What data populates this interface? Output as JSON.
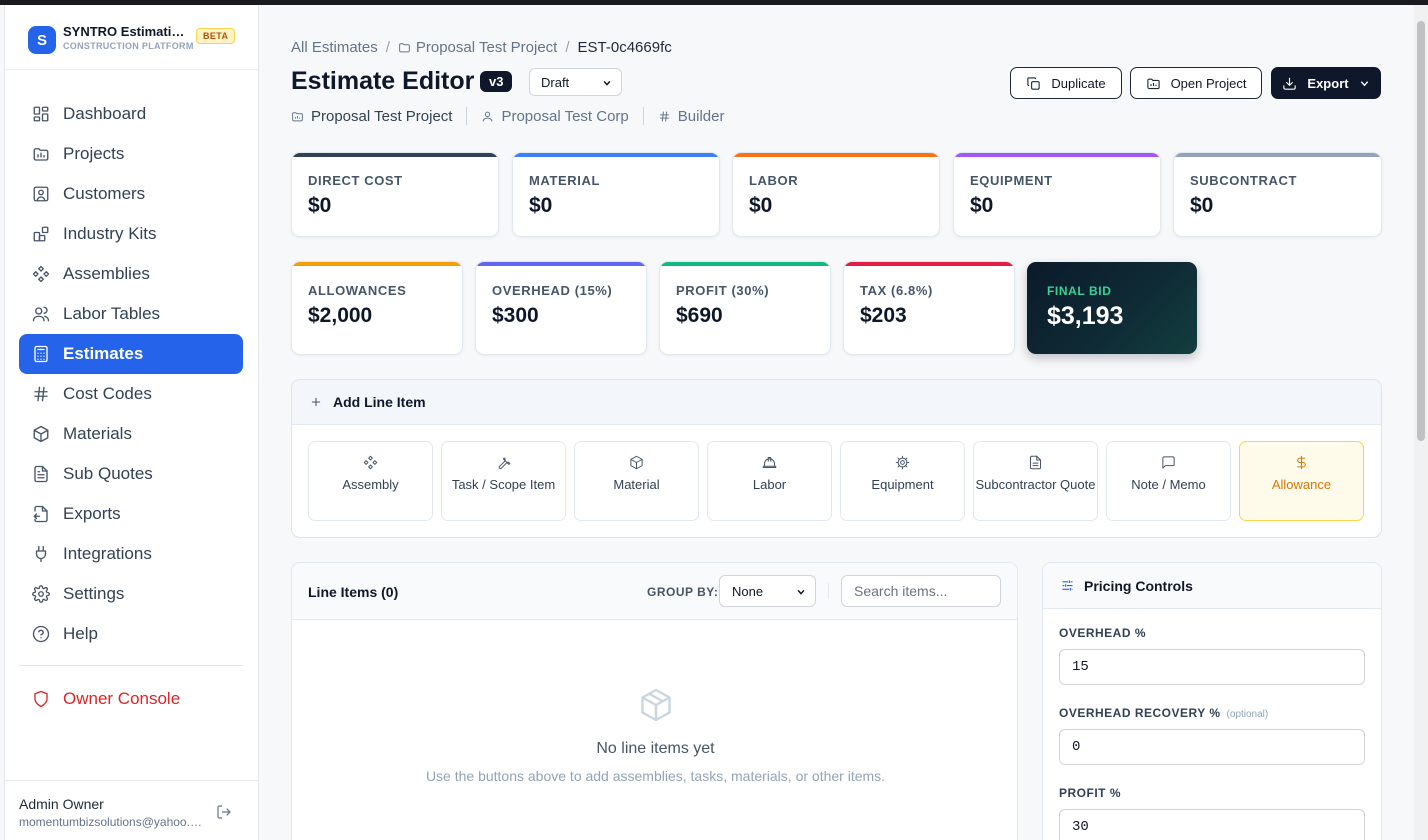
{
  "brand": {
    "logo_letter": "S",
    "name": "SYNTRO Estimating",
    "subtitle": "CONSTRUCTION PLATFORM",
    "badge": "BETA"
  },
  "sidebar": {
    "items": [
      {
        "label": "Dashboard",
        "icon": "dashboard-icon"
      },
      {
        "label": "Projects",
        "icon": "folder-chart-icon"
      },
      {
        "label": "Customers",
        "icon": "contact-icon"
      },
      {
        "label": "Industry Kits",
        "icon": "blocks-icon"
      },
      {
        "label": "Assemblies",
        "icon": "components-icon"
      },
      {
        "label": "Labor Tables",
        "icon": "users-icon"
      },
      {
        "label": "Estimates",
        "icon": "calculator-icon",
        "active": true
      },
      {
        "label": "Cost Codes",
        "icon": "hash-icon"
      },
      {
        "label": "Materials",
        "icon": "package-icon"
      },
      {
        "label": "Sub Quotes",
        "icon": "file-text-icon"
      },
      {
        "label": "Exports",
        "icon": "file-export-icon"
      },
      {
        "label": "Integrations",
        "icon": "plug-icon"
      },
      {
        "label": "Settings",
        "icon": "gear-icon"
      },
      {
        "label": "Help",
        "icon": "help-circle-icon"
      }
    ],
    "owner_console": "Owner Console"
  },
  "user": {
    "name": "Admin Owner",
    "email": "momentumbizsolutions@yahoo.com"
  },
  "breadcrumb": {
    "root": "All Estimates",
    "project": "Proposal Test Project",
    "current": "EST-0c4669fc"
  },
  "header": {
    "title": "Estimate Editor",
    "version": "v3",
    "status": "Draft",
    "project": "Proposal Test Project",
    "customer": "Proposal Test Corp",
    "role": "Builder",
    "buttons": {
      "duplicate": "Duplicate",
      "open_project": "Open Project",
      "export": "Export"
    }
  },
  "stats_row1": [
    {
      "label": "DIRECT COST",
      "value": "$0",
      "color": "#334155"
    },
    {
      "label": "MATERIAL",
      "value": "$0",
      "color": "#3b82f6"
    },
    {
      "label": "LABOR",
      "value": "$0",
      "color": "#f97316"
    },
    {
      "label": "EQUIPMENT",
      "value": "$0",
      "color": "#a855f7"
    },
    {
      "label": "SUBCONTRACT",
      "value": "$0",
      "color": "#94a3b8"
    }
  ],
  "stats_row2": [
    {
      "label": "ALLOWANCES",
      "value": "$2,000",
      "color": "#f59e0b"
    },
    {
      "label": "OVERHEAD (15%)",
      "value": "$300",
      "color": "#6366f1"
    },
    {
      "label": "PROFIT (30%)",
      "value": "$690",
      "color": "#10b981"
    },
    {
      "label": "TAX (6.8%)",
      "value": "$203",
      "color": "#e11d48"
    }
  ],
  "final_bid": {
    "label": "FINAL BID",
    "value": "$3,193"
  },
  "add_line_item": {
    "title": "Add Line Item",
    "tiles": [
      "Assembly",
      "Task / Scope Item",
      "Material",
      "Labor",
      "Equipment",
      "Subcontractor Quote",
      "Note / Memo",
      "Allowance"
    ]
  },
  "line_items": {
    "title": "Line Items (0)",
    "group_by_label": "GROUP BY:",
    "group_by_value": "None",
    "search_placeholder": "Search items...",
    "empty_title": "No line items yet",
    "empty_sub": "Use the buttons above to add assemblies, tasks, materials, or other items."
  },
  "pricing": {
    "title": "Pricing Controls",
    "overhead_label": "OVERHEAD %",
    "overhead_value": "15",
    "recovery_label": "OVERHEAD RECOVERY %",
    "recovery_optional": "(optional)",
    "recovery_value": "0",
    "profit_label": "PROFIT %",
    "profit_value": "30"
  }
}
